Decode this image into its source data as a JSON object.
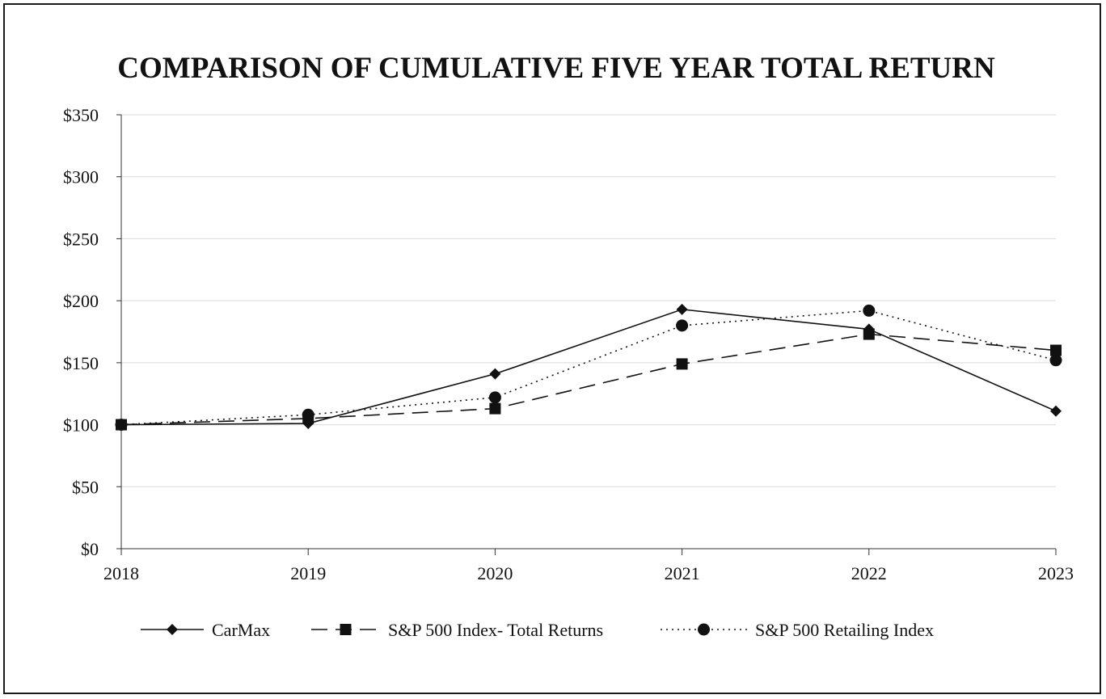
{
  "chart_data": {
    "type": "line",
    "title": "COMPARISON OF CUMULATIVE FIVE YEAR TOTAL RETURN",
    "xlabel": "",
    "ylabel": "",
    "categories": [
      "2018",
      "2019",
      "2020",
      "2021",
      "2022",
      "2023"
    ],
    "ylim": [
      0,
      350
    ],
    "yticks": [
      0,
      50,
      100,
      150,
      200,
      250,
      300,
      350
    ],
    "ytick_labels": [
      "$0",
      "$50",
      "$100",
      "$150",
      "$200",
      "$250",
      "$300",
      "$350"
    ],
    "grid": true,
    "legend_position": "bottom",
    "series": [
      {
        "name": "CarMax",
        "values": [
          100,
          101,
          141,
          193,
          177,
          111
        ],
        "marker": "diamond",
        "line_style": "solid",
        "color": "#111111"
      },
      {
        "name": "S&P 500 Index- Total Returns",
        "values": [
          100,
          105,
          113,
          149,
          173,
          160
        ],
        "marker": "square",
        "line_style": "dashed",
        "color": "#111111"
      },
      {
        "name": "S&P 500 Retailing Index",
        "values": [
          100,
          108,
          122,
          180,
          192,
          152
        ],
        "marker": "circle",
        "line_style": "dotted",
        "color": "#111111"
      }
    ]
  }
}
